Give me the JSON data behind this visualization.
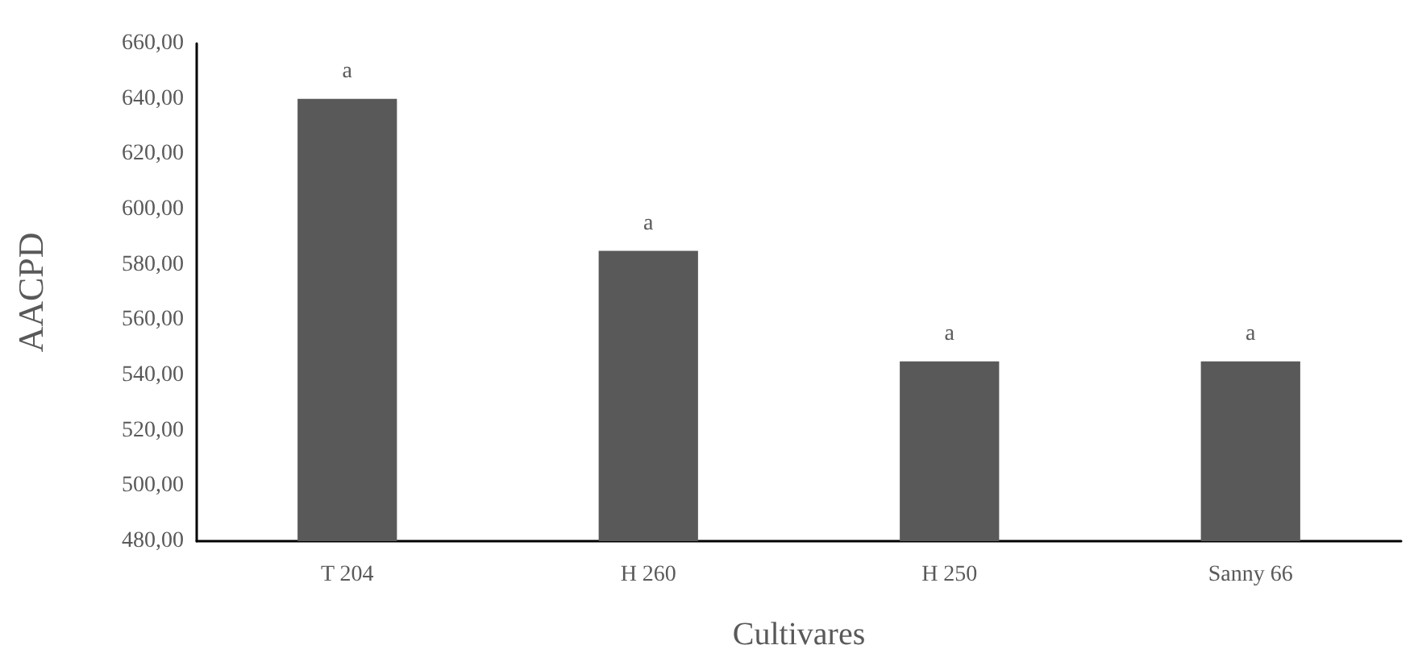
{
  "chart_data": {
    "type": "bar",
    "xlabel": "Cultivares",
    "ylabel": "AACPD",
    "categories": [
      "T 204",
      "H 260",
      "H 250",
      "Sanny 66"
    ],
    "values": [
      640,
      585,
      545,
      545
    ],
    "color": "#595959",
    "ylim": [
      480,
      660
    ],
    "yticks": [
      {
        "value": 480,
        "label": "480,00"
      },
      {
        "value": 500,
        "label": "500,00"
      },
      {
        "value": 520,
        "label": "520,00"
      },
      {
        "value": 540,
        "label": "540,00"
      },
      {
        "value": 560,
        "label": "560,00"
      },
      {
        "value": 580,
        "label": "580,00"
      },
      {
        "value": 600,
        "label": "600,00"
      },
      {
        "value": 620,
        "label": "620,00"
      },
      {
        "value": 640,
        "label": "640,00"
      },
      {
        "value": 660,
        "label": "660,00"
      }
    ],
    "annotations": [
      {
        "text": "a",
        "x": "T 204",
        "y": 640
      },
      {
        "text": "a",
        "x": "H 260",
        "y": 585
      },
      {
        "text": "a",
        "x": "H 250",
        "y": 545
      },
      {
        "text": "a",
        "x": "Sanny 66",
        "y": 545
      }
    ]
  }
}
